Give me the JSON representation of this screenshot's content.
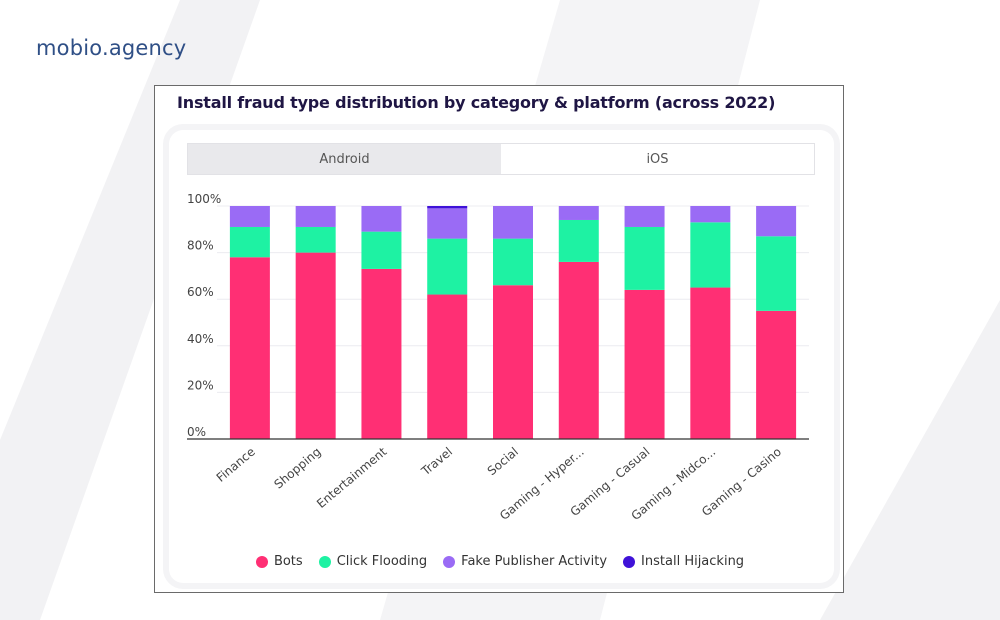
{
  "brand": "mobio.agency",
  "tabs": [
    {
      "label": "Android",
      "active": true
    },
    {
      "label": "iOS",
      "active": false
    }
  ],
  "chart_data": {
    "type": "bar",
    "stacked": true,
    "title": "Install fraud type distribution by category & platform (across 2022)",
    "categories": [
      "Finance",
      "Shopping",
      "Entertainment",
      "Travel",
      "Social",
      "Gaming - Hyper...",
      "Gaming - Casual",
      "Gaming - Midco...",
      "Gaming - Casino"
    ],
    "series": [
      {
        "name": "Bots",
        "color": "#ff2f74",
        "values": [
          78,
          80,
          73,
          62,
          66,
          76,
          64,
          65,
          55
        ]
      },
      {
        "name": "Click Flooding",
        "color": "#1ef2a3",
        "values": [
          13,
          11,
          16,
          24,
          20,
          18,
          27,
          28,
          32
        ]
      },
      {
        "name": "Fake Publisher Activity",
        "color": "#9a6bf5",
        "values": [
          9,
          9,
          11,
          13,
          14,
          6,
          9,
          7,
          13
        ]
      },
      {
        "name": "Install Hijacking",
        "color": "#3f12d8",
        "values": [
          0,
          0,
          0,
          1,
          0,
          0,
          0,
          0,
          0
        ]
      }
    ],
    "yticks": [
      "0%",
      "20%",
      "40%",
      "60%",
      "80%",
      "100%"
    ],
    "ylim": [
      0,
      100
    ],
    "grid": true,
    "legend": "bottom"
  }
}
